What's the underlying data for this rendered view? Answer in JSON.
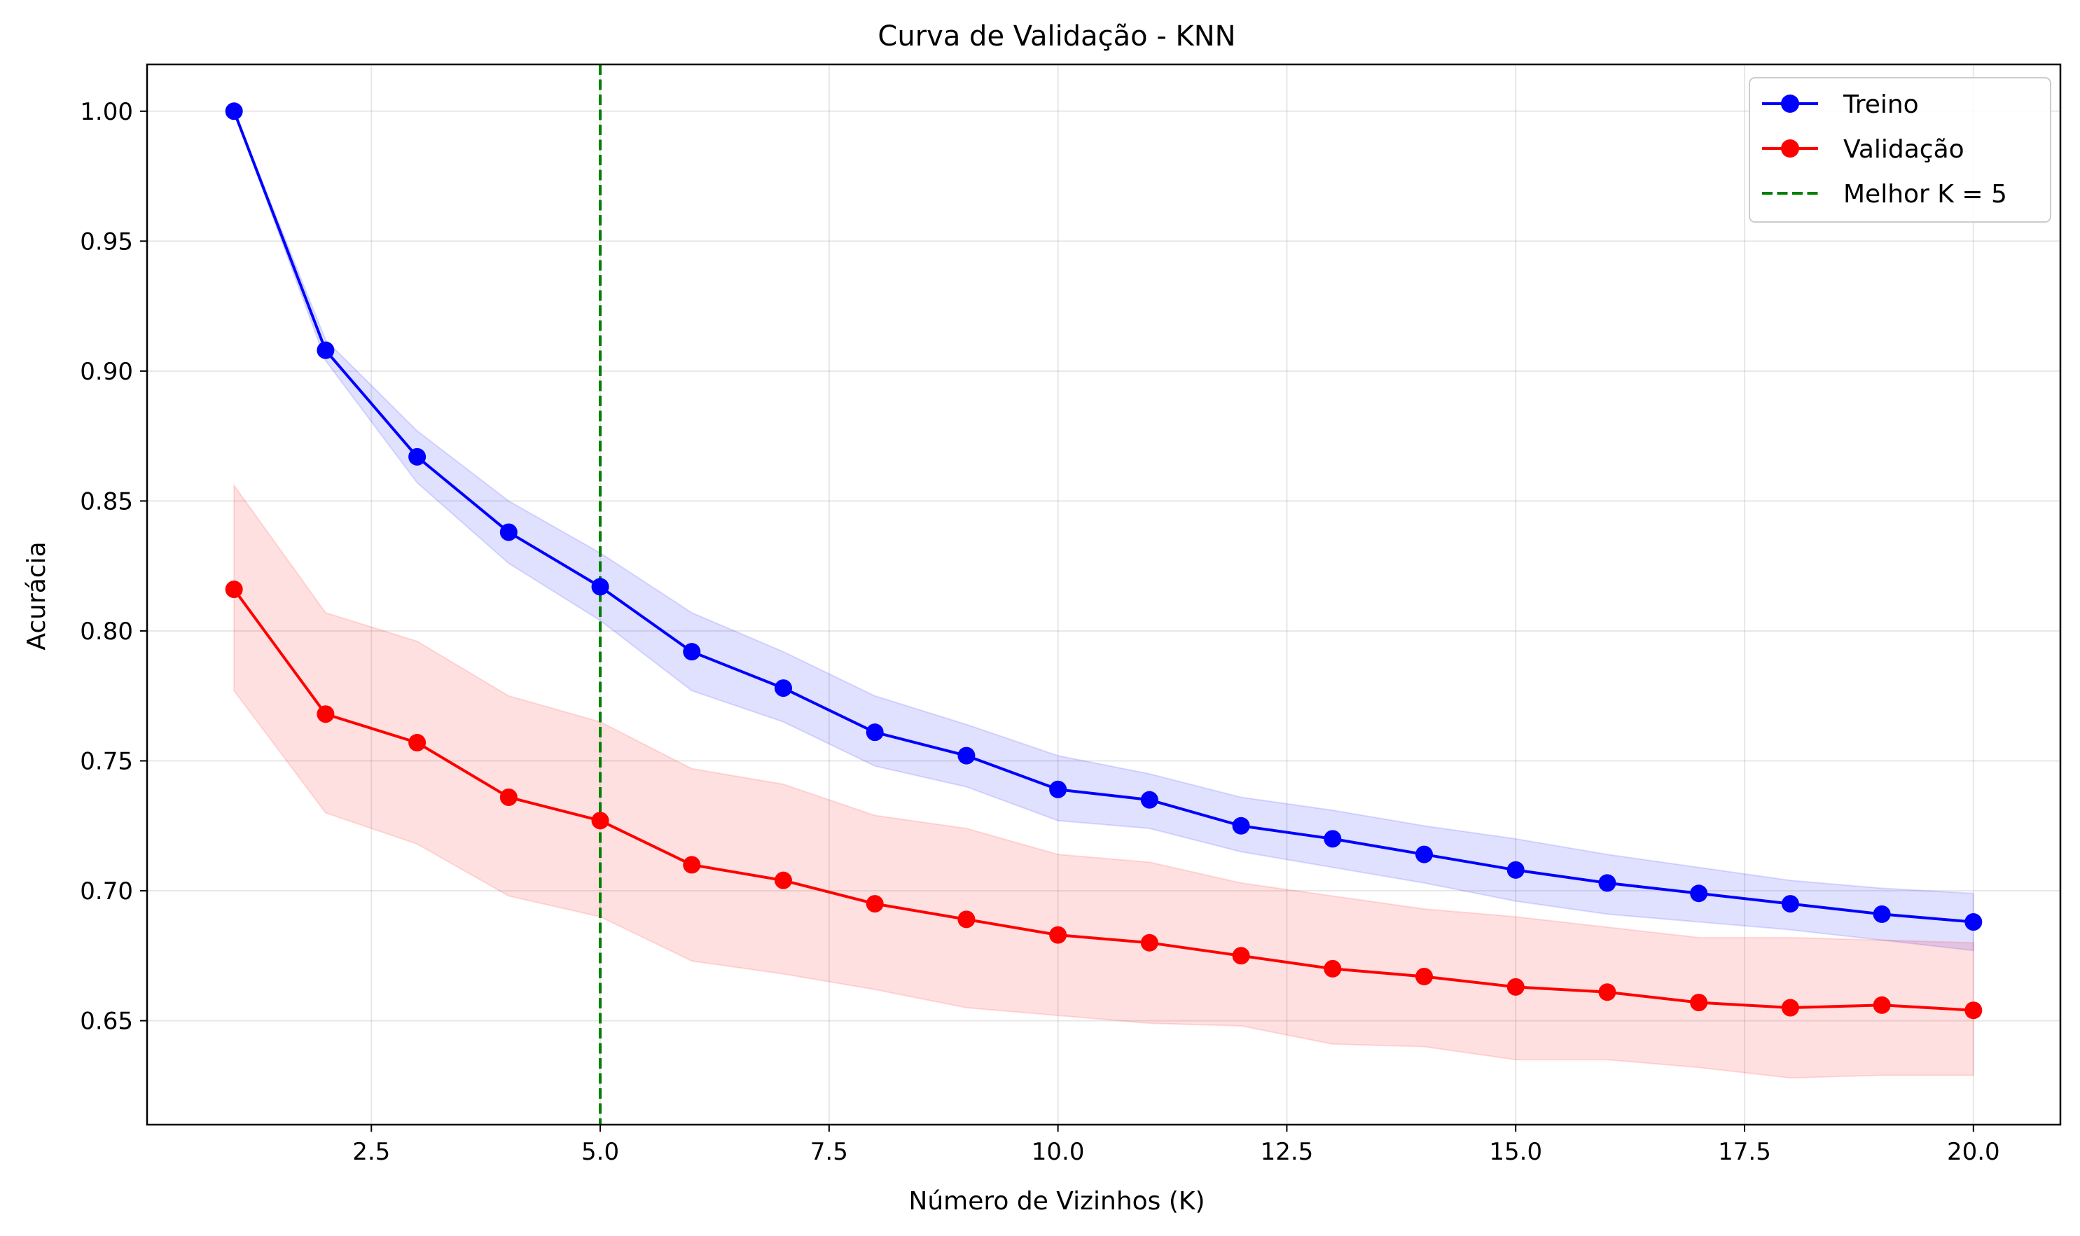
{
  "chart_data": {
    "type": "line",
    "title": "Curva de Validação - KNN",
    "xlabel": "Número de Vizinhos (K)",
    "ylabel": "Acurácia",
    "xlim": [
      0.05,
      20.95
    ],
    "ylim": [
      0.61,
      1.018
    ],
    "xticks": [
      2.5,
      5.0,
      7.5,
      10.0,
      12.5,
      15.0,
      17.5,
      20.0
    ],
    "xtick_labels": [
      "2.5",
      "5.0",
      "7.5",
      "10.0",
      "12.5",
      "15.0",
      "17.5",
      "20.0"
    ],
    "yticks": [
      0.65,
      0.7,
      0.75,
      0.8,
      0.85,
      0.9,
      0.95,
      1.0
    ],
    "ytick_labels": [
      "0.65",
      "0.70",
      "0.75",
      "0.80",
      "0.85",
      "0.90",
      "0.95",
      "1.00"
    ],
    "grid": true,
    "legend_position": "top-right",
    "x": [
      1,
      2,
      3,
      4,
      5,
      6,
      7,
      8,
      9,
      10,
      11,
      12,
      13,
      14,
      15,
      16,
      17,
      18,
      19,
      20
    ],
    "series": [
      {
        "name": "Treino",
        "color": "#0000ff",
        "band_color": "#0000ff",
        "values": [
          1.0,
          0.908,
          0.867,
          0.838,
          0.817,
          0.792,
          0.778,
          0.761,
          0.752,
          0.739,
          0.735,
          0.725,
          0.72,
          0.714,
          0.708,
          0.703,
          0.699,
          0.695,
          0.691,
          0.688
        ],
        "band_upper": [
          1.0,
          0.912,
          0.877,
          0.85,
          0.83,
          0.807,
          0.792,
          0.775,
          0.764,
          0.752,
          0.745,
          0.736,
          0.731,
          0.725,
          0.72,
          0.714,
          0.709,
          0.704,
          0.701,
          0.699
        ],
        "band_lower": [
          1.0,
          0.904,
          0.857,
          0.826,
          0.804,
          0.777,
          0.765,
          0.748,
          0.74,
          0.727,
          0.724,
          0.715,
          0.709,
          0.703,
          0.696,
          0.691,
          0.688,
          0.685,
          0.681,
          0.677
        ]
      },
      {
        "name": "Validação",
        "color": "#ff0000",
        "band_color": "#ff0000",
        "values": [
          0.816,
          0.768,
          0.757,
          0.736,
          0.727,
          0.71,
          0.704,
          0.695,
          0.689,
          0.683,
          0.68,
          0.675,
          0.67,
          0.667,
          0.663,
          0.661,
          0.657,
          0.655,
          0.656,
          0.654
        ],
        "band_upper": [
          0.856,
          0.807,
          0.796,
          0.775,
          0.765,
          0.747,
          0.741,
          0.729,
          0.724,
          0.714,
          0.711,
          0.703,
          0.698,
          0.693,
          0.69,
          0.686,
          0.682,
          0.682,
          0.681,
          0.68
        ],
        "band_lower": [
          0.777,
          0.73,
          0.718,
          0.698,
          0.69,
          0.673,
          0.668,
          0.662,
          0.655,
          0.652,
          0.649,
          0.648,
          0.641,
          0.64,
          0.635,
          0.635,
          0.632,
          0.628,
          0.629,
          0.629
        ]
      }
    ],
    "vline": {
      "x": 5,
      "name": "Melhor K = 5",
      "color": "#008000"
    }
  }
}
